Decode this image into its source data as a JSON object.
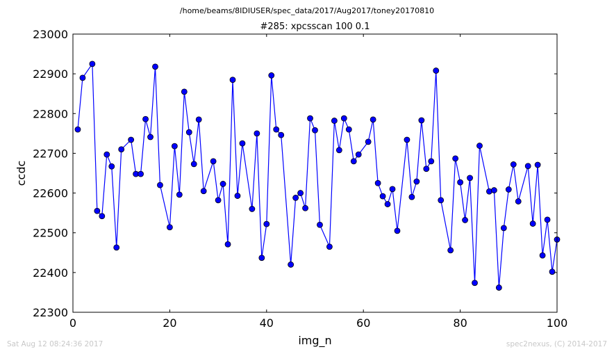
{
  "suptitle": "/home/beams/8IDIUSER/spec_data/2017/Aug2017/toney20170810",
  "footer": {
    "timestamp": "Sat Aug 12 08:24:36 2017",
    "credit": "spec2nexus, (C) 2014-2017"
  },
  "chart_data": {
    "type": "line",
    "title": "#285: xpcsscan 100 0.1",
    "xlabel": "img_n",
    "ylabel": "ccdc",
    "xlim": [
      0,
      100
    ],
    "ylim": [
      22300,
      23000
    ],
    "xticks": [
      0,
      20,
      40,
      60,
      80,
      100
    ],
    "yticks": [
      22300,
      22400,
      22500,
      22600,
      22700,
      22800,
      22900,
      23000
    ],
    "grid": false,
    "marker": "circle",
    "color": "#0000ff",
    "x": [
      1,
      2,
      4,
      5,
      6,
      7,
      8,
      9,
      10,
      12,
      13,
      14,
      15,
      16,
      17,
      18,
      20,
      21,
      22,
      23,
      24,
      25,
      26,
      27,
      29,
      30,
      31,
      32,
      33,
      34,
      35,
      37,
      38,
      39,
      40,
      41,
      42,
      43,
      45,
      46,
      47,
      48,
      49,
      50,
      51,
      53,
      54,
      55,
      56,
      57,
      58,
      59,
      61,
      62,
      63,
      64,
      65,
      66,
      67,
      69,
      70,
      71,
      72,
      73,
      74,
      75,
      76,
      78,
      79,
      80,
      81,
      82,
      83,
      84,
      86,
      87,
      88,
      89,
      90,
      91,
      92,
      94,
      95,
      96,
      97,
      98,
      99,
      100
    ],
    "y": [
      22760,
      22890,
      22925,
      22555,
      22542,
      22697,
      22667,
      22463,
      22710,
      22734,
      22648,
      22648,
      22786,
      22741,
      22918,
      22620,
      22514,
      22718,
      22596,
      22855,
      22753,
      22673,
      22785,
      22605,
      22680,
      22582,
      22623,
      22471,
      22885,
      22593,
      22725,
      22560,
      22750,
      22437,
      22522,
      22896,
      22760,
      22746,
      22420,
      22588,
      22600,
      22562,
      22788,
      22758,
      22520,
      22465,
      22782,
      22708,
      22788,
      22760,
      22680,
      22697,
      22729,
      22785,
      22625,
      22592,
      22572,
      22610,
      22505,
      22734,
      22590,
      22629,
      22783,
      22661,
      22680,
      22908,
      22582,
      22456,
      22687,
      22627,
      22532,
      22638,
      22374,
      22719,
      22604,
      22607,
      22362,
      22512,
      22609,
      22672,
      22579,
      22668,
      22523,
      22671,
      22443,
      22533,
      22402,
      22483
    ]
  }
}
